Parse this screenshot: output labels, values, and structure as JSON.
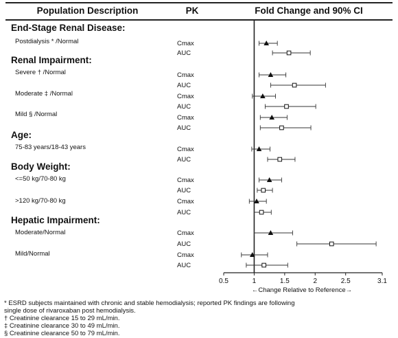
{
  "header": {
    "col_population": "Population Description",
    "col_pk": "PK",
    "col_fold": "Fold Change and 90% CI"
  },
  "groups": [
    {
      "name": "End-Stage Renal Disease:",
      "subgroups": [
        {
          "label": "Postdialysis * /Normal",
          "metrics": [
            {
              "pk": "Cmax",
              "marker": "triangle",
              "point": 1.2,
              "lo": 1.08,
              "hi": 1.38
            },
            {
              "pk": "AUC",
              "marker": "square",
              "point": 1.57,
              "lo": 1.3,
              "hi": 1.92
            }
          ]
        }
      ]
    },
    {
      "name": "Renal Impairment:",
      "subgroups": [
        {
          "label": "Severe † /Normal",
          "metrics": [
            {
              "pk": "Cmax",
              "marker": "triangle",
              "point": 1.27,
              "lo": 1.08,
              "hi": 1.52
            },
            {
              "pk": "AUC",
              "marker": "square",
              "point": 1.66,
              "lo": 1.27,
              "hi": 2.17
            }
          ]
        },
        {
          "label": "Moderate ‡ /Normal",
          "metrics": [
            {
              "pk": "Cmax",
              "marker": "triangle",
              "point": 1.14,
              "lo": 0.97,
              "hi": 1.35
            },
            {
              "pk": "AUC",
              "marker": "square",
              "point": 1.53,
              "lo": 1.18,
              "hi": 2.01
            }
          ]
        },
        {
          "label": "Mild § /Normal",
          "metrics": [
            {
              "pk": "Cmax",
              "marker": "triangle",
              "point": 1.29,
              "lo": 1.1,
              "hi": 1.54
            },
            {
              "pk": "AUC",
              "marker": "square",
              "point": 1.45,
              "lo": 1.1,
              "hi": 1.93
            }
          ]
        }
      ]
    },
    {
      "name": "Age:",
      "subgroups": [
        {
          "label": "75-83 years/18-43 years",
          "metrics": [
            {
              "pk": "Cmax",
              "marker": "triangle",
              "point": 1.08,
              "lo": 0.96,
              "hi": 1.26
            },
            {
              "pk": "AUC",
              "marker": "square",
              "point": 1.42,
              "lo": 1.22,
              "hi": 1.67
            }
          ]
        }
      ]
    },
    {
      "name": "Body Weight:",
      "subgroups": [
        {
          "label": "<=50 kg/70-80 kg",
          "metrics": [
            {
              "pk": "Cmax",
              "marker": "triangle",
              "point": 1.25,
              "lo": 1.08,
              "hi": 1.45
            },
            {
              "pk": "AUC",
              "marker": "square",
              "point": 1.15,
              "lo": 1.05,
              "hi": 1.3
            }
          ]
        },
        {
          "label": ">120 kg/70-80 kg",
          "metrics": [
            {
              "pk": "Cmax",
              "marker": "triangle",
              "point": 1.04,
              "lo": 0.92,
              "hi": 1.2
            },
            {
              "pk": "AUC",
              "marker": "square",
              "point": 1.12,
              "lo": 1.0,
              "hi": 1.28
            }
          ]
        }
      ]
    },
    {
      "name": "Hepatic Impairment:",
      "subgroups": [
        {
          "label": "Moderate/Normal",
          "metrics": [
            {
              "pk": "Cmax",
              "marker": "triangle",
              "point": 1.27,
              "lo": 1.0,
              "hi": 1.63
            },
            {
              "pk": "AUC",
              "marker": "square",
              "point": 2.27,
              "lo": 1.7,
              "hi": 3.0
            }
          ]
        },
        {
          "label": "Mild/Normal",
          "metrics": [
            {
              "pk": "Cmax",
              "marker": "triangle",
              "point": 0.97,
              "lo": 0.79,
              "hi": 1.22
            },
            {
              "pk": "AUC",
              "marker": "square",
              "point": 1.16,
              "lo": 0.87,
              "hi": 1.55
            }
          ]
        }
      ]
    }
  ],
  "chart_data": {
    "type": "forest",
    "title": "Fold Change and 90% CI",
    "xlabel": "←Change Relative to Reference→",
    "xlim": [
      0.5,
      3.1
    ],
    "xticks": [
      "0.5",
      "1",
      "1.5",
      "2",
      "2.5",
      "3.1"
    ],
    "reference_line": 1,
    "legend": "none"
  },
  "footnotes": [
    "* ESRD subjects maintained with chronic and stable hemodialysis; reported PK findings are following",
    "single dose of rivaroxaban post hemodialysis.",
    "† Creatinine clearance 15 to 29 mL/min.",
    "‡ Creatinine clearance 30 to 49 mL/min.",
    "§ Creatinine clearance 50 to 79 mL/min."
  ]
}
